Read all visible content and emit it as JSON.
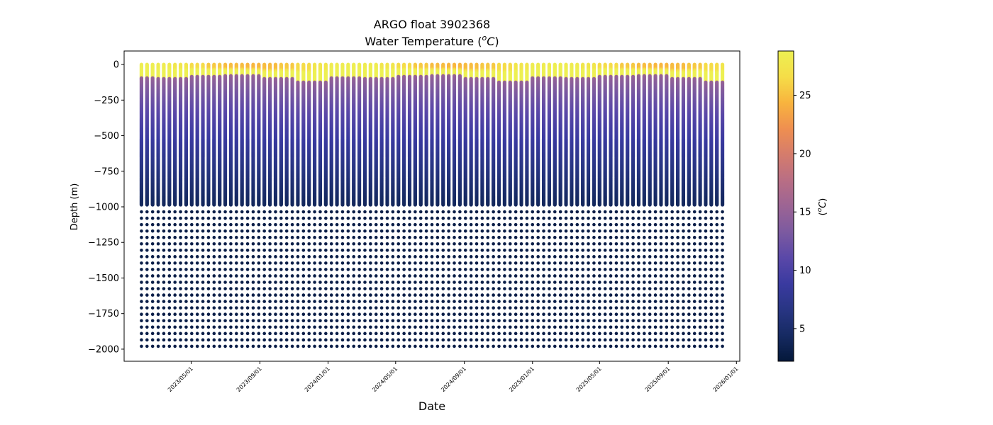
{
  "chart_data": {
    "type": "scatter",
    "title": "ARGO float 3902368",
    "subtitle_prefix": "Water Temperature (",
    "subtitle_unit_sup": "o",
    "subtitle_unit_main": "C",
    "subtitle_suffix": ")",
    "xlabel": "Date",
    "ylabel": "Depth (m)",
    "colorbar_label_prefix": "(",
    "colorbar_label_sup": "o",
    "colorbar_label_main": "C",
    "colorbar_label_suffix": ")",
    "xlim": [
      "2023-01-01",
      "2026-01-07"
    ],
    "ylim": [
      -2085,
      95
    ],
    "x_ticks": [
      "2023-05-01",
      "2023-09-01",
      "2024-01-01",
      "2024-05-01",
      "2024-09-01",
      "2025-01-01",
      "2025-05-01",
      "2025-09-01",
      "2026-01-01"
    ],
    "x_tick_labels": [
      "2023/05/01",
      "2023/09/01",
      "2024/01/01",
      "2024/05/01",
      "2024/09/01",
      "2025/01/01",
      "2025/05/01",
      "2025/09/01",
      "2026/01/01"
    ],
    "y_ticks": [
      0,
      -250,
      -500,
      -750,
      -1000,
      -1250,
      -1500,
      -1750,
      -2000
    ],
    "y_tick_labels": [
      "0",
      "−250",
      "−500",
      "−750",
      "−1000",
      "−1250",
      "−1500",
      "−1750",
      "−2000"
    ],
    "colorbar_range": [
      2.2,
      28.8
    ],
    "colorbar_ticks": [
      5,
      10,
      15,
      20,
      25
    ],
    "colorbar_tick_labels": [
      "5",
      "10",
      "15",
      "20",
      "25"
    ],
    "colormap": [
      "#04183a",
      "#162a62",
      "#283583",
      "#3a3aa0",
      "#5a48a8",
      "#7c5aa0",
      "#9c6494",
      "#b96e84",
      "#d57c6c",
      "#ef8f50",
      "#f8b43e",
      "#f5dd48",
      "#edf052"
    ],
    "first_profile_date": "2023-02-01",
    "last_profile_date": "2025-12-09",
    "profile_interval_days": 10,
    "upper_profile_range_m": [
      0,
      -985
    ],
    "deep_sample_depths_m": [
      -1035,
      -1080,
      -1125,
      -1170,
      -1215,
      -1260,
      -1305,
      -1350,
      -1395,
      -1440,
      -1485,
      -1530,
      -1575,
      -1620,
      -1665,
      -1710,
      -1755,
      -1800,
      -1845,
      -1890,
      -1935,
      -1980
    ],
    "deep_water_temperature_c": 3.0,
    "mixed_layer_depth_m_by_season": [
      {
        "month": 1,
        "mld": -90
      },
      {
        "month": 3,
        "mld": -95
      },
      {
        "month": 5,
        "mld": -80
      },
      {
        "month": 7,
        "mld": -75
      },
      {
        "month": 9,
        "mld": -95
      },
      {
        "month": 11,
        "mld": -120
      }
    ],
    "surface_temperature_c_range": [
      24.5,
      28.6
    ],
    "grid": false,
    "colorbar_position": "right"
  }
}
